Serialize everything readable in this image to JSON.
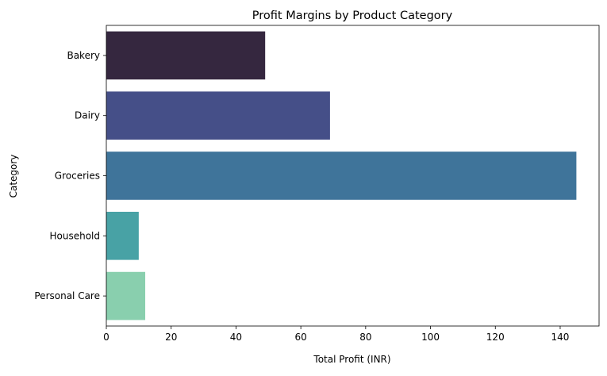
{
  "chart_data": {
    "type": "bar",
    "orientation": "horizontal",
    "title": "Profit Margins by Product Category",
    "xlabel": "Total Profit (INR)",
    "ylabel": "Category",
    "categories": [
      "Bakery",
      "Dairy",
      "Groceries",
      "Household",
      "Personal Care"
    ],
    "values": [
      49,
      69,
      145,
      10,
      12
    ],
    "colors": [
      "#35273f",
      "#454f88",
      "#3f749a",
      "#48a2a5",
      "#89cfae"
    ],
    "xlim": [
      0,
      152
    ],
    "xticks": [
      0,
      20,
      40,
      60,
      80,
      100,
      120,
      140
    ],
    "grid": false,
    "legend": "none"
  }
}
